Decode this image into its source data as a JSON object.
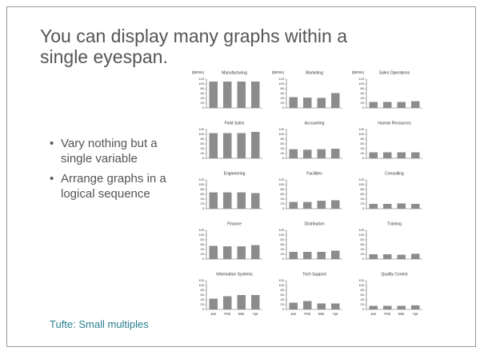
{
  "title_lines": [
    "You can display many graphs within a",
    "single eyespan."
  ],
  "bullets": [
    "Vary nothing but a single variable",
    "Arrange graphs in a logical sequence"
  ],
  "footer": "Tufte: Small multiples",
  "chart_data": [
    {
      "type": "bar",
      "title": "Manufacturing",
      "units": "($000s)",
      "categories": [
        null,
        null,
        null,
        null
      ],
      "values": [
        110,
        110,
        110,
        110
      ],
      "color": "#8c8c8c",
      "ylim": [
        0,
        120
      ],
      "yticks": [
        0,
        20,
        40,
        60,
        80,
        100,
        120
      ]
    },
    {
      "type": "bar",
      "title": "Marketing",
      "units": "($000s)",
      "categories": [
        null,
        null,
        null,
        null
      ],
      "values": [
        45,
        43,
        42,
        62
      ],
      "color": "#8c8c8c",
      "ylim": [
        0,
        120
      ],
      "yticks": [
        0,
        20,
        40,
        60,
        80,
        100,
        120
      ]
    },
    {
      "type": "bar",
      "title": "Sales Operations",
      "units": "($000s)",
      "categories": [
        null,
        null,
        null,
        null
      ],
      "values": [
        25,
        25,
        25,
        28
      ],
      "color": "#8c8c8c",
      "ylim": [
        0,
        120
      ],
      "yticks": [
        0,
        20,
        40,
        60,
        80,
        100,
        120
      ]
    },
    {
      "type": "bar",
      "title": "Field Sales",
      "categories": [
        null,
        null,
        null,
        null
      ],
      "values": [
        105,
        105,
        105,
        110
      ],
      "color": "#8c8c8c",
      "ylim": [
        0,
        120
      ],
      "yticks": [
        0,
        20,
        40,
        60,
        80,
        100,
        120
      ]
    },
    {
      "type": "bar",
      "title": "Accounting",
      "categories": [
        null,
        null,
        null,
        null
      ],
      "values": [
        38,
        36,
        38,
        40
      ],
      "color": "#8c8c8c",
      "ylim": [
        0,
        120
      ],
      "yticks": [
        0,
        20,
        40,
        60,
        80,
        100,
        120
      ]
    },
    {
      "type": "bar",
      "title": "Human Resources",
      "categories": [
        null,
        null,
        null,
        null
      ],
      "values": [
        25,
        25,
        25,
        25
      ],
      "color": "#8c8c8c",
      "ylim": [
        0,
        120
      ],
      "yticks": [
        0,
        20,
        40,
        60,
        80,
        100,
        120
      ]
    },
    {
      "type": "bar",
      "title": "Engineering",
      "categories": [
        null,
        null,
        null,
        null
      ],
      "values": [
        68,
        68,
        68,
        65
      ],
      "color": "#8c8c8c",
      "ylim": [
        0,
        120
      ],
      "yticks": [
        0,
        20,
        40,
        60,
        80,
        100,
        120
      ]
    },
    {
      "type": "bar",
      "title": "Facilities",
      "categories": [
        null,
        null,
        null,
        null
      ],
      "values": [
        28,
        28,
        33,
        35
      ],
      "color": "#8c8c8c",
      "ylim": [
        0,
        120
      ],
      "yticks": [
        0,
        20,
        40,
        60,
        80,
        100,
        120
      ]
    },
    {
      "type": "bar",
      "title": "Consulting",
      "categories": [
        null,
        null,
        null,
        null
      ],
      "values": [
        20,
        20,
        22,
        20
      ],
      "color": "#8c8c8c",
      "ylim": [
        0,
        120
      ],
      "yticks": [
        0,
        20,
        40,
        60,
        80,
        100,
        120
      ]
    },
    {
      "type": "bar",
      "title": "Finance",
      "categories": [
        null,
        null,
        null,
        null
      ],
      "values": [
        55,
        53,
        53,
        58
      ],
      "color": "#8c8c8c",
      "ylim": [
        0,
        120
      ],
      "yticks": [
        0,
        20,
        40,
        60,
        80,
        100,
        120
      ]
    },
    {
      "type": "bar",
      "title": "Distribution",
      "categories": [
        null,
        null,
        null,
        null
      ],
      "values": [
        30,
        30,
        30,
        35
      ],
      "color": "#8c8c8c",
      "ylim": [
        0,
        120
      ],
      "yticks": [
        0,
        20,
        40,
        60,
        80,
        100,
        120
      ]
    },
    {
      "type": "bar",
      "title": "Training",
      "categories": [
        null,
        null,
        null,
        null
      ],
      "values": [
        20,
        20,
        18,
        22
      ],
      "color": "#8c8c8c",
      "ylim": [
        0,
        120
      ],
      "yticks": [
        0,
        20,
        40,
        60,
        80,
        100,
        120
      ]
    },
    {
      "type": "bar",
      "title": "Information Systems",
      "categories": [
        "Jan",
        "Feb",
        "Mar",
        "Apr"
      ],
      "values": [
        45,
        55,
        60,
        60
      ],
      "color": "#8c8c8c",
      "ylim": [
        0,
        120
      ],
      "yticks": [
        0,
        20,
        40,
        60,
        80,
        100,
        120
      ]
    },
    {
      "type": "bar",
      "title": "Tech Support",
      "categories": [
        "Jan",
        "Feb",
        "Mar",
        "Apr"
      ],
      "values": [
        28,
        35,
        25,
        25
      ],
      "color": "#8c8c8c",
      "ylim": [
        0,
        120
      ],
      "yticks": [
        0,
        20,
        40,
        60,
        80,
        100,
        120
      ]
    },
    {
      "type": "bar",
      "title": "Quality Control",
      "categories": [
        "Jan",
        "Feb",
        "Mar",
        "Apr"
      ],
      "values": [
        15,
        15,
        15,
        17
      ],
      "color": "#8c8c8c",
      "ylim": [
        0,
        120
      ],
      "yticks": [
        0,
        20,
        40,
        60,
        80,
        100,
        120
      ]
    }
  ]
}
